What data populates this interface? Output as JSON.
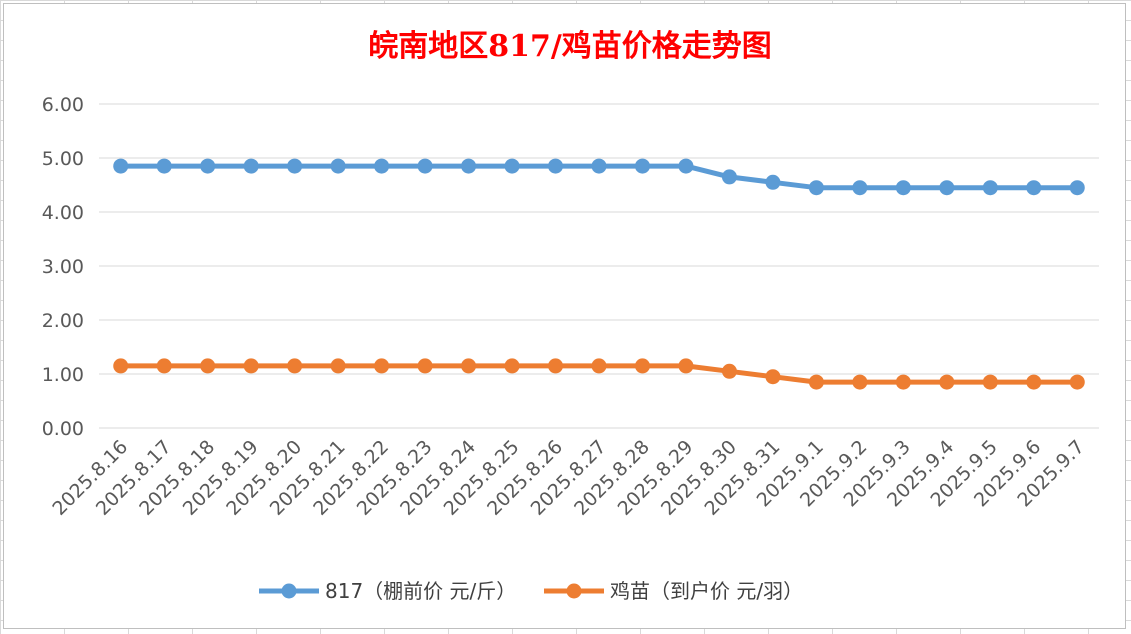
{
  "chart_data": {
    "type": "line",
    "title": "皖南地区817/鸡苗价格走势图",
    "xlabel": "",
    "ylabel": "",
    "ylim": [
      0,
      6
    ],
    "yticks": [
      "0.00",
      "1.00",
      "2.00",
      "3.00",
      "4.00",
      "5.00",
      "6.00"
    ],
    "categories": [
      "2025.8.16",
      "2025.8.17",
      "2025.8.18",
      "2025.8.19",
      "2025.8.20",
      "2025.8.21",
      "2025.8.22",
      "2025.8.23",
      "2025.8.24",
      "2025.8.25",
      "2025.8.26",
      "2025.8.27",
      "2025.8.28",
      "2025.8.29",
      "2025.8.30",
      "2025.8.31",
      "2025.9.1",
      "2025.9.2",
      "2025.9.3",
      "2025.9.4",
      "2025.9.5",
      "2025.9.6",
      "2025.9.7"
    ],
    "series": [
      {
        "name": "817（棚前价 元/斤）",
        "color": "#5b9bd5",
        "values": [
          4.85,
          4.85,
          4.85,
          4.85,
          4.85,
          4.85,
          4.85,
          4.85,
          4.85,
          4.85,
          4.85,
          4.85,
          4.85,
          4.85,
          4.65,
          4.55,
          4.45,
          4.45,
          4.45,
          4.45,
          4.45,
          4.45,
          4.45
        ]
      },
      {
        "name": "鸡苗（到户价 元/羽）",
        "color": "#ed7d31",
        "values": [
          1.15,
          1.15,
          1.15,
          1.15,
          1.15,
          1.15,
          1.15,
          1.15,
          1.15,
          1.15,
          1.15,
          1.15,
          1.15,
          1.15,
          1.05,
          0.95,
          0.85,
          0.85,
          0.85,
          0.85,
          0.85,
          0.85,
          0.85
        ]
      }
    ],
    "grid": true,
    "legend_position": "bottom"
  }
}
